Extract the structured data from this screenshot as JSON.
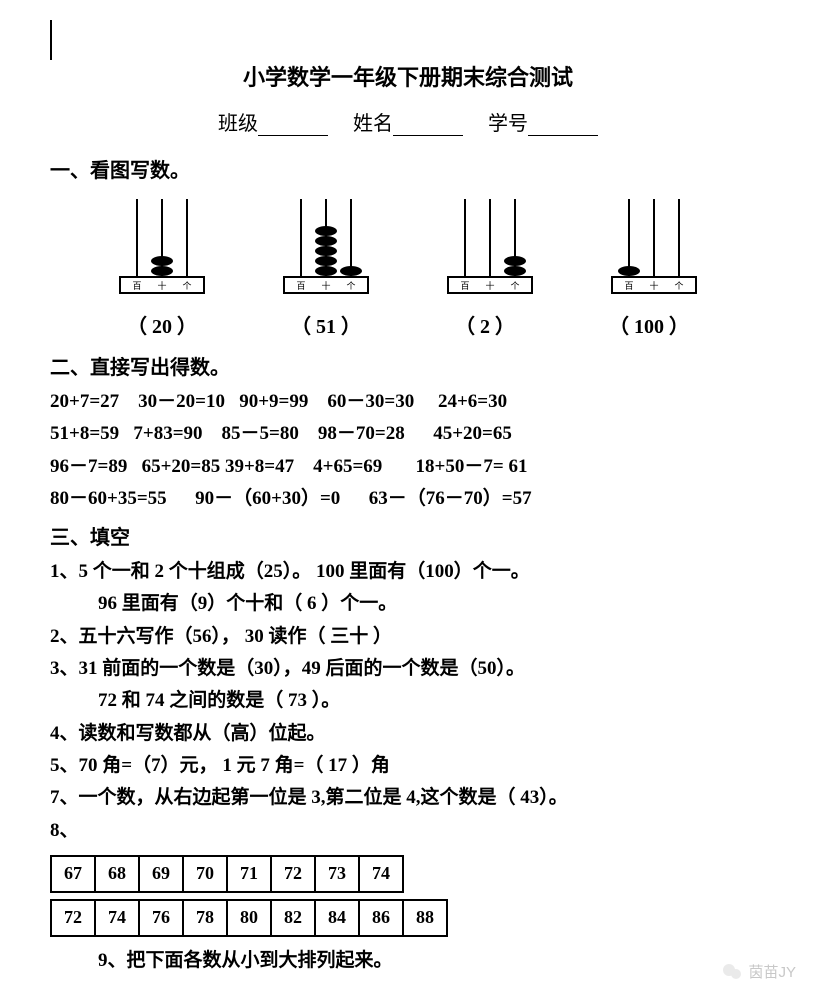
{
  "title": "小学数学一年级下册期末综合测试",
  "info": {
    "class_label": "班级",
    "name_label": "姓名",
    "id_label": "学号"
  },
  "s1": {
    "head": "一、看图写数。",
    "abaci": [
      {
        "beads": [
          0,
          2,
          0
        ],
        "labels": [
          "百",
          "十",
          "个"
        ],
        "answer": "（  20  ）"
      },
      {
        "beads": [
          0,
          5,
          1
        ],
        "labels": [
          "百",
          "十",
          "个"
        ],
        "answer": "（  51  ）"
      },
      {
        "beads": [
          0,
          0,
          2
        ],
        "labels": [
          "百",
          "十",
          "个"
        ],
        "answer": "（  2  ）"
      },
      {
        "beads": [
          1,
          0,
          0
        ],
        "labels": [
          "百",
          "十",
          "个"
        ],
        "answer": "（  100  ）"
      }
    ]
  },
  "s2": {
    "head": "二、直接写出得数。",
    "lines": [
      "20+7=27    30－20=10   90+9=99    60－30=30     24+6=30",
      "51+8=59   7+83=90    85－5=80    98－70=28      45+20=65",
      "96－7=89   65+20=85 39+8=47    4+65=69       18+50－7= 61",
      "80－60+35=55      90－（60+30）=0      63－（76－70）=57"
    ]
  },
  "s3": {
    "head": "三、填空",
    "l1a": "1、5 个一和 2 个十组成（25）。   100 里面有（100）个一。",
    "l1b": "96 里面有（9）个十和（ 6 ）个一。",
    "l2": "2、五十六写作（56），   30 读作（ 三十 ）",
    "l3a": "3、31 前面的一个数是（30），49 后面的一个数是（50）。",
    "l3b": "72 和 74 之间的数是（ 73 ）。",
    "l4": "4、读数和写数都从（高）位起。",
    "l5": "5、70 角=（7）元，    1 元 7 角=（ 17 ）角",
    "l7": "7、一个数，从右边起第一位是 3,第二位是 4,这个数是（ 43）。",
    "l8": "8、"
  },
  "tables": {
    "row1": [
      "67",
      "68",
      "69",
      "70",
      "71",
      "72",
      "73",
      "74"
    ],
    "row2": [
      "72",
      "74",
      "76",
      "78",
      "80",
      "82",
      "84",
      "86",
      "88"
    ]
  },
  "s9": "9、把下面各数从小到大排列起来。",
  "watermark": "茵苗JY"
}
